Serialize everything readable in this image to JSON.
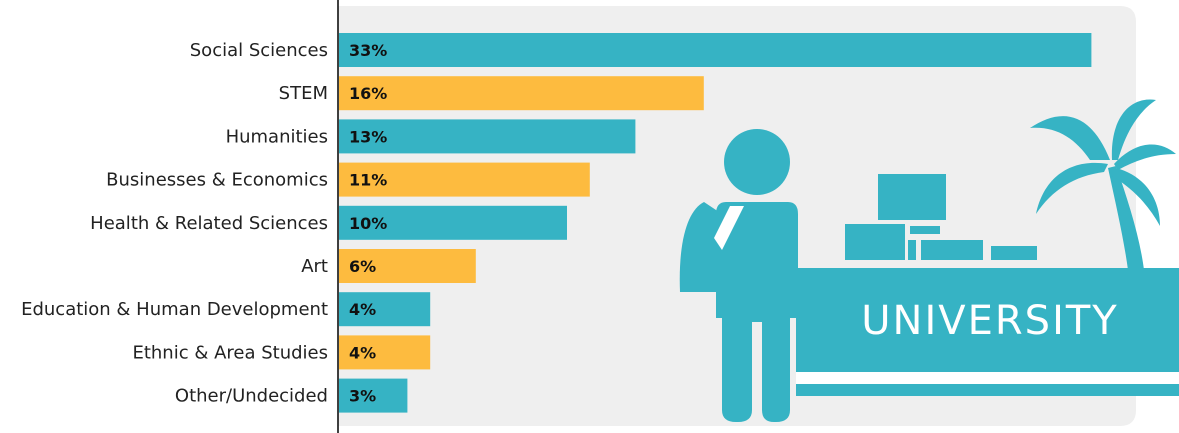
{
  "chart_data": {
    "type": "bar",
    "orientation": "horizontal",
    "title": "",
    "xlabel": "",
    "ylabel": "",
    "categories": [
      "Social Sciences",
      "STEM",
      "Humanities",
      "Businesses & Economics",
      "Health & Related Sciences",
      "Art",
      "Education & Human Development",
      "Ethnic & Area Studies",
      "Other/Undecided"
    ],
    "values": [
      33,
      16,
      13,
      11,
      10,
      6,
      4,
      4,
      3
    ],
    "value_labels": [
      "33%",
      "16%",
      "13%",
      "11%",
      "10%",
      "6%",
      "4%",
      "4%",
      "3%"
    ],
    "bar_colors": [
      "#36b3c4",
      "#fdbb3f",
      "#36b3c4",
      "#fdbb3f",
      "#36b3c4",
      "#fdbb3f",
      "#36b3c4",
      "#fdbb3f",
      "#36b3c4"
    ],
    "grid": false,
    "legend": "none"
  },
  "illustration": {
    "sign_text": "UNIVERSITY",
    "icons": [
      "student-with-backpack-icon",
      "palm-tree-icon",
      "university-building-icon"
    ],
    "accent_color": "#36b3c4",
    "panel_color": "#efefef"
  }
}
